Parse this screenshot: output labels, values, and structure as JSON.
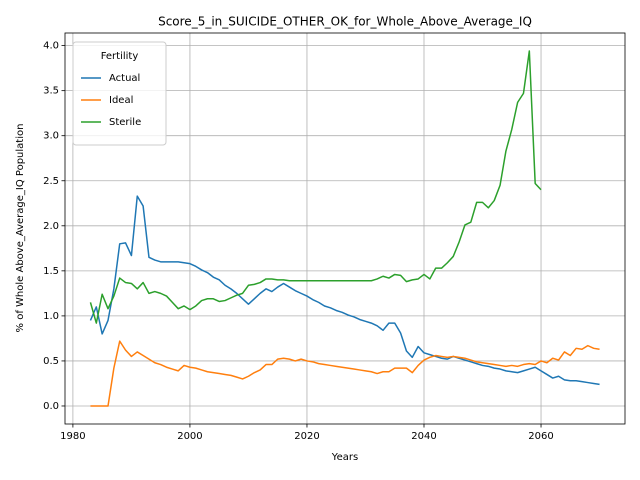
{
  "chart_data": {
    "type": "line",
    "title": "Score_5_in_SUICIDE_OTHER_OK_for_Whole_Above_Average_IQ",
    "xlabel": "Years",
    "ylabel": "% of Whole Above_Average_IQ Population",
    "legend_title": "Fertility",
    "legend": "upper left",
    "grid": true,
    "x": [
      1983,
      1984,
      1985,
      1986,
      1987,
      1988,
      1989,
      1990,
      1991,
      1992,
      1993,
      1994,
      1995,
      1996,
      1997,
      1998,
      1999,
      2000,
      2001,
      2002,
      2003,
      2004,
      2005,
      2006,
      2007,
      2008,
      2009,
      2010,
      2011,
      2012,
      2013,
      2014,
      2015,
      2016,
      2017,
      2018,
      2019,
      2020,
      2021,
      2022,
      2023,
      2024,
      2025,
      2026,
      2027,
      2028,
      2029,
      2030,
      2031,
      2032,
      2033,
      2034,
      2035,
      2036,
      2037,
      2038,
      2039,
      2040,
      2041,
      2042,
      2043,
      2044,
      2045,
      2046,
      2047,
      2048,
      2049,
      2050,
      2051,
      2052,
      2053,
      2054,
      2055,
      2056,
      2057,
      2058,
      2059,
      2060,
      2061,
      2062,
      2063,
      2064,
      2065,
      2066,
      2067,
      2068,
      2069,
      2070
    ],
    "series": [
      {
        "name": "Actual",
        "color": "#1f77b4",
        "values": [
          0.95,
          1.1,
          0.8,
          0.95,
          1.3,
          1.8,
          1.81,
          1.67,
          2.33,
          2.22,
          1.65,
          1.62,
          1.6,
          1.6,
          1.6,
          1.6,
          1.59,
          1.58,
          1.55,
          1.51,
          1.48,
          1.43,
          1.4,
          1.34,
          1.3,
          1.25,
          1.19,
          1.13,
          1.19,
          1.25,
          1.3,
          1.27,
          1.32,
          1.36,
          1.32,
          1.28,
          1.25,
          1.22,
          1.18,
          1.15,
          1.11,
          1.09,
          1.06,
          1.04,
          1.01,
          0.99,
          0.96,
          0.94,
          0.92,
          0.89,
          0.84,
          0.92,
          0.92,
          0.81,
          0.61,
          0.54,
          0.66,
          0.59,
          0.57,
          0.55,
          0.53,
          0.52,
          0.55,
          0.53,
          0.51,
          0.49,
          0.47,
          0.45,
          0.44,
          0.42,
          0.41,
          0.39,
          0.38,
          0.37,
          0.39,
          0.41,
          0.43,
          0.39,
          0.35,
          0.31,
          0.33,
          0.29,
          0.28,
          0.28,
          0.27,
          0.26,
          0.25,
          0.24
        ]
      },
      {
        "name": "Ideal",
        "color": "#ff7f0e",
        "values": [
          0,
          0,
          0,
          0,
          0.42,
          0.72,
          0.62,
          0.55,
          0.6,
          0.56,
          0.52,
          0.48,
          0.46,
          0.43,
          0.41,
          0.39,
          0.45,
          0.43,
          0.42,
          0.4,
          0.38,
          0.37,
          0.36,
          0.35,
          0.34,
          0.32,
          0.3,
          0.33,
          0.37,
          0.4,
          0.46,
          0.46,
          0.52,
          0.53,
          0.52,
          0.5,
          0.52,
          0.5,
          0.49,
          0.47,
          0.46,
          0.45,
          0.44,
          0.43,
          0.42,
          0.41,
          0.4,
          0.39,
          0.38,
          0.36,
          0.38,
          0.38,
          0.42,
          0.42,
          0.42,
          0.37,
          0.45,
          0.51,
          0.54,
          0.56,
          0.55,
          0.54,
          0.55,
          0.54,
          0.53,
          0.51,
          0.49,
          0.48,
          0.47,
          0.46,
          0.45,
          0.44,
          0.45,
          0.44,
          0.46,
          0.47,
          0.46,
          0.5,
          0.48,
          0.53,
          0.51,
          0.6,
          0.56,
          0.64,
          0.63,
          0.67,
          0.64,
          0.63
        ]
      },
      {
        "name": "Sterile",
        "color": "#2ca02c",
        "values": [
          1.15,
          0.92,
          1.24,
          1.08,
          1.22,
          1.42,
          1.37,
          1.36,
          1.3,
          1.37,
          1.25,
          1.27,
          1.25,
          1.22,
          1.15,
          1.08,
          1.11,
          1.07,
          1.11,
          1.17,
          1.19,
          1.19,
          1.16,
          1.17,
          1.2,
          1.23,
          1.25,
          1.34,
          1.35,
          1.37,
          1.41,
          1.41,
          1.4,
          1.4,
          1.39,
          1.39,
          1.39,
          1.39,
          1.39,
          1.39,
          1.39,
          1.39,
          1.39,
          1.39,
          1.39,
          1.39,
          1.39,
          1.39,
          1.39,
          1.41,
          1.44,
          1.42,
          1.46,
          1.45,
          1.38,
          1.4,
          1.41,
          1.46,
          1.41,
          1.53,
          1.53,
          1.59,
          1.66,
          1.82,
          2.01,
          2.04,
          2.26,
          2.26,
          2.2,
          2.28,
          2.45,
          2.83,
          3.07,
          3.37,
          3.47,
          3.94,
          2.47,
          2.4,
          null,
          null,
          null,
          null,
          null,
          null,
          null,
          null,
          null,
          null
        ]
      }
    ],
    "xlim": [
      1978.65,
      2074.35
    ],
    "ylim": [
      -0.2,
      4.14
    ],
    "xticks": [
      1980,
      2000,
      2020,
      2040,
      2060
    ],
    "yticks": [
      {
        "value": 0,
        "label": "0.0"
      },
      {
        "value": 0.5,
        "label": "0.5"
      },
      {
        "value": 1,
        "label": "1.0"
      },
      {
        "value": 1.5,
        "label": "1.5"
      },
      {
        "value": 2,
        "label": "2.0"
      },
      {
        "value": 2.5,
        "label": "2.5"
      },
      {
        "value": 3,
        "label": "3.0"
      },
      {
        "value": 3.5,
        "label": "3.5"
      },
      {
        "value": 4,
        "label": "4.0"
      }
    ]
  }
}
